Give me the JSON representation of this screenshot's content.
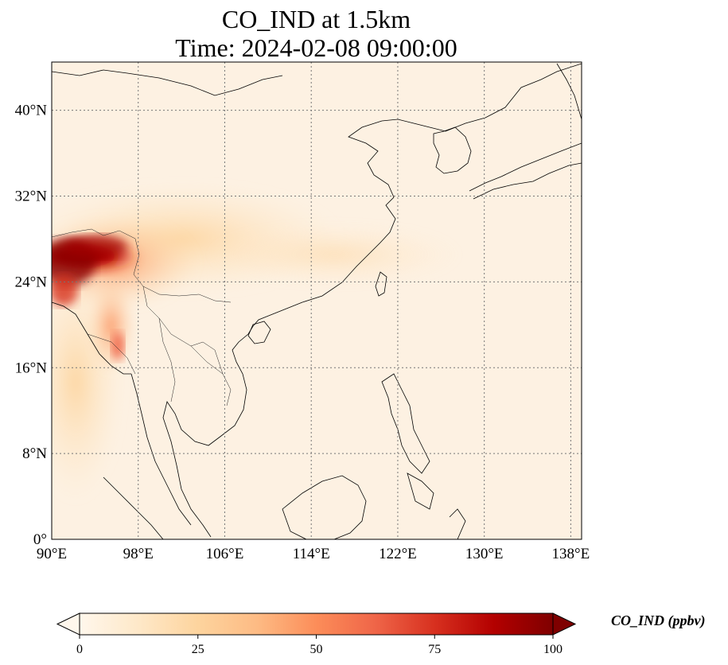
{
  "title": {
    "line1": "CO_IND at 1.5km",
    "line2": "Time: 2024-02-08 09:00:00"
  },
  "map": {
    "lon_range": [
      90,
      139
    ],
    "lat_range": [
      0,
      44.5
    ],
    "x_ticks": [
      {
        "value": 90,
        "label": "90°E"
      },
      {
        "value": 98,
        "label": "98°E"
      },
      {
        "value": 106,
        "label": "106°E"
      },
      {
        "value": 114,
        "label": "114°E"
      },
      {
        "value": 122,
        "label": "122°E"
      },
      {
        "value": 130,
        "label": "130°E"
      },
      {
        "value": 138,
        "label": "138°E"
      }
    ],
    "y_ticks": [
      {
        "value": 0,
        "label": "0°"
      },
      {
        "value": 8,
        "label": "8°N"
      },
      {
        "value": 16,
        "label": "16°N"
      },
      {
        "value": 24,
        "label": "24°N"
      },
      {
        "value": 32,
        "label": "32°N"
      },
      {
        "value": 40,
        "label": "40°N"
      }
    ],
    "gridlines": true,
    "background_color": "#fdf1e2",
    "coastline_color": "#000000"
  },
  "colorbar": {
    "label": "CO_IND (ppbv)",
    "min": 0,
    "max": 100,
    "ticks": [
      "0",
      "25",
      "50",
      "75",
      "100"
    ],
    "colormap": "OrRd",
    "colors": [
      "#fff7ec",
      "#fee8c8",
      "#fdd49e",
      "#fdbb84",
      "#fc8d59",
      "#ef6548",
      "#d7301f",
      "#b30000",
      "#7f0000"
    ],
    "extend": "both"
  }
}
